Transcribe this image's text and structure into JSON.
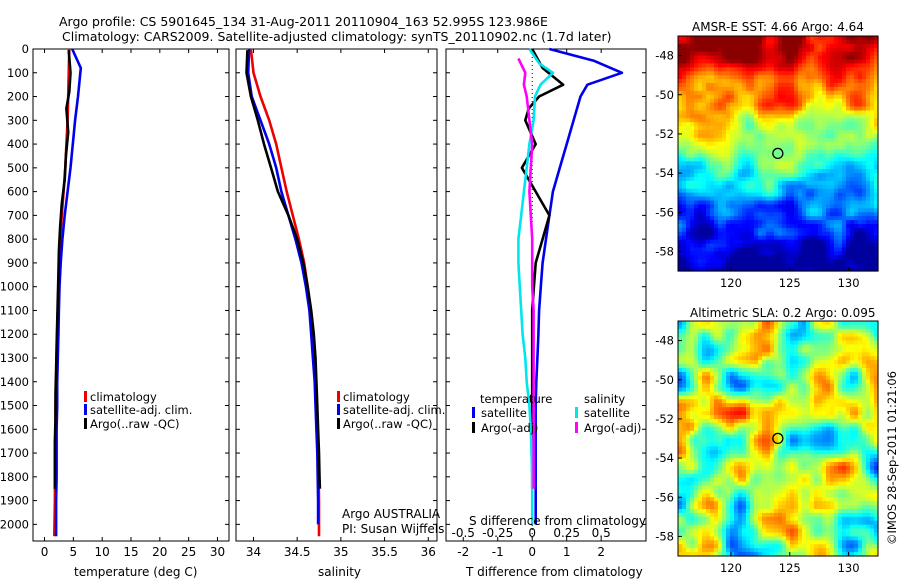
{
  "header": {
    "title_line1": "Argo profile: CS 5901645_134 31-Aug-2011 20110904_163 52.995S 123.986E",
    "title_line2": "Climatology: CARS2009. Satellite-adjusted climatology: synTS_20110902.nc (1.7d later)"
  },
  "watermark": "©IMOS 28-Sep-2011 01:21:06",
  "colors": {
    "climatology": "#ee0000",
    "satellite": "#0000ee",
    "argo": "#000000",
    "s_satellite": "#00e5ee",
    "s_argo": "#ff00ff"
  },
  "chart_data": [
    {
      "type": "line",
      "xlabel": "temperature (deg C)",
      "ylabel": "",
      "xlim": [
        -2,
        32
      ],
      "ylim": [
        0,
        2070
      ],
      "y_inverted": true,
      "xticks": [
        0,
        5,
        10,
        15,
        20,
        25,
        30
      ],
      "yticks": [
        0,
        100,
        200,
        300,
        400,
        500,
        600,
        700,
        800,
        900,
        1000,
        1100,
        1200,
        1300,
        1400,
        1500,
        1600,
        1700,
        1800,
        1900,
        2000
      ],
      "legend": {
        "position": "center-right",
        "entries": [
          "climatology",
          "satellite-adj. clim.",
          "Argo(..raw -QC)"
        ]
      },
      "series": [
        {
          "name": "climatology",
          "x": [
            4.3,
            4.2,
            4.1,
            4.0,
            3.8,
            3.6,
            3.3,
            3.0,
            2.7,
            2.5,
            2.4,
            2.3,
            2.2,
            2.1,
            2.0,
            1.9,
            1.9,
            1.8,
            1.8,
            1.8,
            1.7
          ],
          "y": [
            0,
            100,
            200,
            300,
            400,
            500,
            600,
            700,
            800,
            900,
            1000,
            1100,
            1200,
            1300,
            1400,
            1500,
            1600,
            1700,
            1800,
            1900,
            2050
          ]
        },
        {
          "name": "satellite-adj. clim.",
          "x": [
            4.8,
            6.3,
            5.8,
            5.3,
            4.9,
            4.5,
            4.0,
            3.5,
            3.1,
            2.8,
            2.6,
            2.5,
            2.4,
            2.3,
            2.2,
            2.2,
            2.1,
            2.1,
            2.1,
            2.0,
            2.0
          ],
          "y": [
            0,
            80,
            200,
            300,
            400,
            500,
            600,
            700,
            800,
            900,
            1000,
            1100,
            1200,
            1300,
            1400,
            1500,
            1600,
            1700,
            1800,
            1900,
            2050
          ]
        },
        {
          "name": "Argo(..raw -QC)",
          "x": [
            4.2,
            4.5,
            4.3,
            3.8,
            4.1,
            3.7,
            3.5,
            3.0,
            2.7,
            2.5,
            2.4,
            2.3,
            2.2,
            2.1,
            2.0,
            1.9,
            1.9,
            1.8,
            1.8,
            1.8
          ],
          "y": [
            5,
            100,
            180,
            250,
            350,
            450,
            550,
            650,
            750,
            850,
            950,
            1050,
            1150,
            1250,
            1350,
            1450,
            1550,
            1650,
            1750,
            1850
          ]
        }
      ]
    },
    {
      "type": "line",
      "xlabel": "salinity",
      "ylabel": "",
      "xlim": [
        33.8,
        36.1
      ],
      "ylim": [
        0,
        2070
      ],
      "y_inverted": true,
      "xticks": [
        34,
        34.5,
        35,
        35.5,
        36
      ],
      "xtick_labels": [
        "34",
        "34.5",
        "35",
        "35.5",
        "36"
      ],
      "legend": {
        "position": "lower-right",
        "entries": [
          "climatology",
          "satellite-adj. clim.",
          "Argo(..raw -QC)"
        ]
      },
      "annotations": [
        "Argo AUSTRALIA",
        "PI: Susan Wijffels"
      ],
      "series": [
        {
          "name": "climatology",
          "x": [
            33.97,
            34.0,
            34.08,
            34.18,
            34.26,
            34.32,
            34.38,
            34.45,
            34.52,
            34.58,
            34.62,
            34.65,
            34.67,
            34.69,
            34.71,
            34.72,
            34.73,
            34.74,
            34.745,
            34.75,
            34.75
          ],
          "y": [
            0,
            100,
            200,
            300,
            400,
            500,
            600,
            700,
            800,
            900,
            1000,
            1100,
            1200,
            1300,
            1400,
            1500,
            1600,
            1700,
            1800,
            1900,
            2050
          ]
        },
        {
          "name": "satellite-adj. clim.",
          "x": [
            33.95,
            33.94,
            33.98,
            34.08,
            34.18,
            34.26,
            34.32,
            34.4,
            34.48,
            34.55,
            34.6,
            34.64,
            34.66,
            34.68,
            34.7,
            34.71,
            34.72,
            34.73,
            34.735,
            34.74,
            34.74
          ],
          "y": [
            0,
            100,
            200,
            300,
            400,
            500,
            600,
            700,
            800,
            900,
            1000,
            1100,
            1200,
            1300,
            1400,
            1500,
            1600,
            1700,
            1800,
            1900,
            2000
          ]
        },
        {
          "name": "Argo(..raw -QC)",
          "x": [
            33.93,
            33.92,
            33.97,
            34.05,
            34.12,
            34.2,
            34.28,
            34.4,
            34.5,
            34.57,
            34.62,
            34.66,
            34.69,
            34.71,
            34.72,
            34.73,
            34.74,
            34.75,
            34.755,
            34.76
          ],
          "y": [
            5,
            100,
            200,
            300,
            400,
            500,
            600,
            700,
            800,
            900,
            1000,
            1100,
            1200,
            1300,
            1400,
            1500,
            1600,
            1700,
            1800,
            1850
          ]
        }
      ]
    },
    {
      "type": "line",
      "xlabel": "T difference from climatology",
      "x2label": "S difference from climatology",
      "ylabel": "",
      "xlim": [
        -2.5,
        3.3
      ],
      "x2lim": [
        -0.625,
        0.825
      ],
      "ylim": [
        0,
        2070
      ],
      "y_inverted": true,
      "xticks": [
        -2,
        -1,
        0,
        1,
        2
      ],
      "x2ticks": [
        -0.5,
        -0.25,
        0,
        0.25,
        0.5
      ],
      "x2tick_labels": [
        "-0.5",
        "-0.25",
        "0",
        "0.25",
        "0.5"
      ],
      "legend": {
        "position": "lower-center",
        "group_titles": [
          "temperature",
          "salinity"
        ],
        "entries": [
          "satellite",
          "Argo(-adj)",
          "satellite",
          "Argo(-adj)"
        ]
      },
      "series": [
        {
          "name": "temperature satellite",
          "axis": "T",
          "x": [
            0.5,
            1.8,
            2.6,
            1.6,
            1.4,
            1.2,
            1.0,
            0.8,
            0.6,
            0.5,
            0.4,
            0.3,
            0.25,
            0.2,
            0.18,
            0.15,
            0.12,
            0.1,
            0.1,
            0.1,
            0.1
          ],
          "y": [
            0,
            50,
            100,
            150,
            200,
            300,
            400,
            500,
            600,
            700,
            800,
            900,
            1000,
            1100,
            1200,
            1300,
            1400,
            1500,
            1600,
            1700,
            2000
          ]
        },
        {
          "name": "temperature Argo(-adj)",
          "axis": "T",
          "x": [
            0,
            0.3,
            0.9,
            0.2,
            -0.1,
            -0.2,
            0.1,
            -0.3,
            0.1,
            0.5,
            0.3,
            0.1,
            0.05,
            0,
            0,
            0,
            0,
            0,
            0,
            0
          ],
          "y": [
            0,
            80,
            150,
            200,
            250,
            300,
            400,
            500,
            600,
            700,
            800,
            900,
            1000,
            1100,
            1200,
            1300,
            1400,
            1500,
            1600,
            1850
          ]
        },
        {
          "name": "salinity satellite",
          "axis": "S",
          "x": [
            -0.02,
            0.05,
            0.15,
            0.06,
            0.02,
            0.01,
            -0.02,
            -0.04,
            -0.06,
            -0.08,
            -0.1,
            -0.1,
            -0.09,
            -0.08,
            -0.07,
            -0.05,
            -0.04,
            -0.02,
            -0.01,
            0,
            0
          ],
          "y": [
            0,
            60,
            100,
            150,
            200,
            300,
            400,
            500,
            600,
            700,
            800,
            900,
            1000,
            1100,
            1200,
            1300,
            1400,
            1500,
            1600,
            1800,
            2000
          ]
        },
        {
          "name": "salinity Argo(-adj)",
          "axis": "S",
          "x": [
            -0.1,
            -0.05,
            -0.06,
            -0.04,
            -0.03,
            -0.02,
            0,
            -0.01,
            -0.02,
            -0.01,
            0,
            0,
            0,
            0.01,
            0.01,
            0.01,
            0.01,
            0.01,
            0.01
          ],
          "y": [
            40,
            100,
            150,
            200,
            250,
            300,
            400,
            500,
            600,
            700,
            800,
            900,
            1000,
            1100,
            1200,
            1300,
            1400,
            1500,
            1850
          ]
        }
      ]
    },
    {
      "type": "heatmap",
      "title": "AMSR-E SST: 4.66 Argo: 4.64",
      "xlim": [
        115.5,
        132.5
      ],
      "ylim": [
        -59,
        -47
      ],
      "xticks": [
        120,
        125,
        130
      ],
      "yticks": [
        -48,
        -50,
        -52,
        -54,
        -56,
        -58
      ],
      "marker": {
        "lon": 123.986,
        "lat": -52.995
      },
      "colormap": "jet",
      "description": "SST field: warm (red) in north near -47 to -50, cooling through yellow/green to blue near -57 to -59"
    },
    {
      "type": "heatmap",
      "title": "Altimetric SLA: 0.2 Argo: 0.095",
      "xlim": [
        115.5,
        132.5
      ],
      "ylim": [
        -59,
        -47
      ],
      "xticks": [
        120,
        125,
        130
      ],
      "yticks": [
        -48,
        -50,
        -52,
        -54,
        -56,
        -58
      ],
      "marker": {
        "lon": 123.986,
        "lat": -52.995
      },
      "colormap": "jet",
      "description": "Sea level anomaly field mostly green with scattered yellow/orange highs and blue lows"
    }
  ]
}
